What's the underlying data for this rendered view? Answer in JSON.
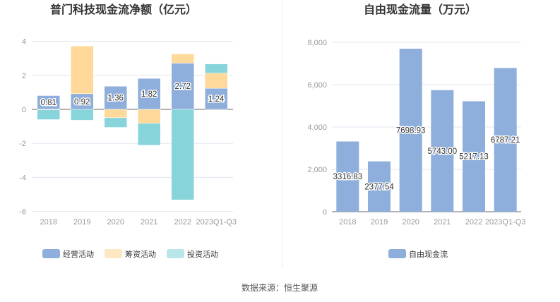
{
  "source": "数据来源：恒生聚源",
  "colors": {
    "operating": "#8eaedb",
    "financing": "#fed999",
    "investing": "#87d5da",
    "fcf": "#8eaedb",
    "legend_investing": "#b9e6e9",
    "legend_financing": "#fee8c3"
  },
  "chart_data": [
    {
      "type": "bar",
      "stacked": true,
      "title": "普门科技现金流净额（亿元）",
      "categories": [
        "2018",
        "2019",
        "2020",
        "2021",
        "2022",
        "2023Q1-Q3"
      ],
      "ylim": [
        -6,
        4
      ],
      "yticks": [
        4,
        2,
        0,
        -2,
        -4,
        -6
      ],
      "legend_position": "bottom",
      "series": [
        {
          "name": "经营活动",
          "values": [
            0.81,
            0.92,
            1.36,
            1.82,
            2.72,
            1.24
          ],
          "labels": [
            "0.81",
            "0.92",
            "1.36",
            "1.82",
            "2.72",
            "1.24"
          ]
        },
        {
          "name": "筹资活动",
          "values": [
            -0.03,
            2.8,
            -0.49,
            -0.82,
            0.54,
            0.89
          ]
        },
        {
          "name": "投资活动",
          "values": [
            -0.57,
            -0.64,
            -0.57,
            -1.29,
            -5.32,
            0.54
          ]
        }
      ]
    },
    {
      "type": "bar",
      "title": "自由现金流量（万元）",
      "categories": [
        "2018",
        "2019",
        "2020",
        "2021",
        "2022",
        "2023Q1-Q3"
      ],
      "ylim": [
        0,
        8000
      ],
      "yticks": [
        "0",
        "2,000",
        "4,000",
        "6,000",
        "8,000"
      ],
      "legend_position": "bottom",
      "series": [
        {
          "name": "自由现金流",
          "values": [
            3316.83,
            2377.54,
            7698.93,
            5743.0,
            5217.13,
            6787.21
          ],
          "labels": [
            "3316.83",
            "2377.54",
            "7698.93",
            "5743.00",
            "5217.13",
            "6787.21"
          ]
        }
      ]
    }
  ]
}
